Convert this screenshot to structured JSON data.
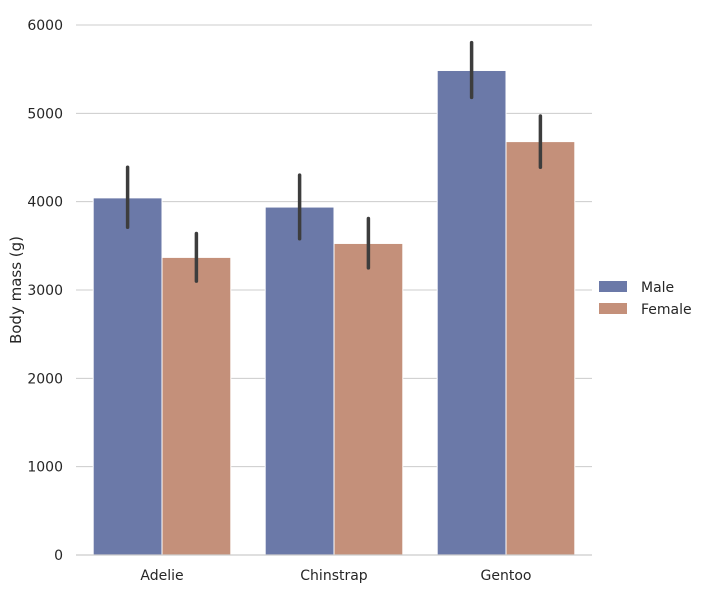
{
  "chart_data": {
    "type": "bar",
    "title": "",
    "xlabel": "",
    "ylabel": "Body mass (g)",
    "ylim": [
      0,
      6000
    ],
    "yticks": [
      0,
      1000,
      2000,
      3000,
      4000,
      5000,
      6000
    ],
    "categories": [
      "Adelie",
      "Chinstrap",
      "Gentoo"
    ],
    "grid": "horizontal",
    "legend_position": "right",
    "series": [
      {
        "name": "Male",
        "color": "#6b79a8",
        "values": [
          4043,
          3939,
          5485
        ],
        "ci_low": [
          3710,
          3580,
          5180
        ],
        "ci_high": [
          4390,
          4300,
          5800
        ]
      },
      {
        "name": "Female",
        "color": "#c4907a",
        "values": [
          3369,
          3527,
          4680
        ],
        "ci_low": [
          3100,
          3250,
          4390
        ],
        "ci_high": [
          3640,
          3810,
          4970
        ]
      }
    ]
  }
}
